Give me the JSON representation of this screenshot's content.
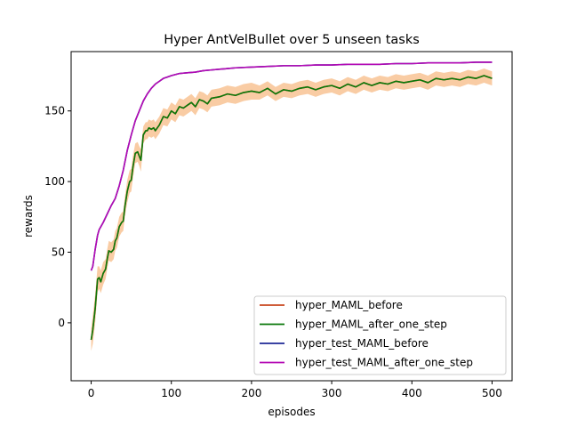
{
  "chart_data": {
    "type": "line",
    "title": "Hyper AntVelBullet over 5 unseen tasks",
    "xlabel": "episodes",
    "ylabel": "rewards",
    "xlim": [
      -25,
      525
    ],
    "ylim": [
      -41,
      192
    ],
    "xticks": [
      0,
      100,
      200,
      300,
      400,
      500
    ],
    "yticks": [
      0,
      50,
      100,
      150
    ],
    "grid": false,
    "legend_position": "lower-right",
    "colors": {
      "hyper_MAML_before": "#c8461e",
      "hyper_MAML_after_one_step": "#0a780a",
      "hyper_test_MAML_before": "#1e2896",
      "hyper_test_MAML_after_one_step": "#b40ab4",
      "band": "#f4a25a"
    },
    "series": [
      {
        "name": "hyper_MAML_before",
        "key": "a",
        "x": [
          0,
          2,
          5,
          8,
          10,
          12,
          15,
          18,
          20,
          22,
          25,
          28,
          30,
          32,
          35,
          38,
          40,
          42,
          45,
          48,
          50,
          52,
          55,
          58,
          60,
          62,
          65,
          68,
          70,
          72,
          75,
          78,
          80,
          85,
          90,
          95,
          100,
          105,
          110,
          115,
          120,
          125,
          130,
          135,
          140,
          145,
          150,
          160,
          170,
          180,
          190,
          200,
          210,
          220,
          230,
          240,
          250,
          260,
          270,
          280,
          290,
          300,
          310,
          320,
          330,
          340,
          350,
          360,
          370,
          380,
          390,
          400,
          410,
          420,
          430,
          440,
          450,
          460,
          470,
          480,
          490,
          500
        ],
        "values": [
          -12,
          -5,
          10,
          31,
          32,
          29,
          35,
          38,
          45,
          51,
          50,
          52,
          58,
          60,
          68,
          71,
          72,
          82,
          93,
          100,
          101,
          110,
          120,
          121,
          118,
          115,
          133,
          136,
          136,
          138,
          137,
          138,
          136,
          140,
          146,
          145,
          150,
          148,
          153,
          152,
          154,
          156,
          153,
          158,
          157,
          155,
          159,
          160,
          162,
          161,
          163,
          164,
          163,
          166,
          162,
          165,
          164,
          166,
          167,
          165,
          167,
          168,
          166,
          169,
          167,
          170,
          168,
          170,
          169,
          171,
          170,
          171,
          172,
          170,
          173,
          172,
          173,
          172,
          174,
          173,
          175,
          173
        ],
        "spread": [
          8,
          10,
          10,
          9,
          8,
          8,
          8,
          7,
          7,
          7,
          7,
          7,
          7,
          7,
          7,
          7,
          7,
          7,
          8,
          8,
          8,
          8,
          7,
          7,
          7,
          8,
          6,
          6,
          6,
          6,
          6,
          6,
          6,
          6,
          6,
          6,
          6,
          6,
          6,
          6,
          6,
          6,
          6,
          6,
          6,
          6,
          6,
          6,
          6,
          6,
          6,
          6,
          5,
          5,
          5,
          5,
          5,
          5,
          5,
          5,
          5,
          5,
          5,
          5,
          5,
          5,
          5,
          5,
          5,
          5,
          5,
          5,
          5,
          5,
          5,
          5,
          5,
          5,
          5,
          5,
          5,
          5
        ]
      },
      {
        "name": "hyper_MAML_after_one_step",
        "key": "b",
        "x": [
          0,
          2,
          5,
          8,
          10,
          12,
          15,
          18,
          20,
          22,
          25,
          28,
          30,
          32,
          35,
          38,
          40,
          42,
          45,
          48,
          50,
          52,
          55,
          58,
          60,
          62,
          65,
          68,
          70,
          72,
          75,
          78,
          80,
          85,
          90,
          95,
          100,
          105,
          110,
          115,
          120,
          125,
          130,
          135,
          140,
          145,
          150,
          160,
          170,
          180,
          190,
          200,
          210,
          220,
          230,
          240,
          250,
          260,
          270,
          280,
          290,
          300,
          310,
          320,
          330,
          340,
          350,
          360,
          370,
          380,
          390,
          400,
          410,
          420,
          430,
          440,
          450,
          460,
          470,
          480,
          490,
          500
        ],
        "values": [
          -12,
          -5,
          10,
          31,
          32,
          29,
          35,
          38,
          45,
          51,
          50,
          52,
          58,
          60,
          68,
          71,
          72,
          82,
          93,
          100,
          101,
          110,
          120,
          121,
          118,
          115,
          133,
          136,
          136,
          138,
          137,
          138,
          136,
          140,
          146,
          145,
          150,
          148,
          153,
          152,
          154,
          156,
          153,
          158,
          157,
          155,
          159,
          160,
          162,
          161,
          163,
          164,
          163,
          166,
          162,
          165,
          164,
          166,
          167,
          165,
          167,
          168,
          166,
          169,
          167,
          170,
          168,
          170,
          169,
          171,
          170,
          171,
          172,
          170,
          173,
          172,
          173,
          172,
          174,
          173,
          175,
          173
        ]
      },
      {
        "name": "hyper_test_MAML_before",
        "key": "c",
        "x": [
          0,
          2,
          5,
          8,
          10,
          15,
          20,
          25,
          30,
          35,
          40,
          45,
          50,
          55,
          60,
          65,
          70,
          75,
          80,
          85,
          90,
          95,
          100,
          110,
          120,
          130,
          140,
          150,
          160,
          170,
          180,
          200,
          220,
          240,
          260,
          280,
          300,
          320,
          340,
          360,
          380,
          400,
          420,
          440,
          460,
          480,
          500
        ],
        "values": [
          37,
          40,
          52,
          62,
          66,
          71,
          77,
          83,
          88,
          97,
          108,
          122,
          133,
          143,
          150,
          157,
          162,
          166,
          169,
          171,
          173,
          174,
          175,
          176.5,
          177,
          177.5,
          178.5,
          179,
          179.5,
          180,
          180.5,
          181,
          181.5,
          182,
          182,
          182.5,
          182.5,
          183,
          183,
          183,
          183.5,
          183.5,
          184,
          184,
          184,
          184.5,
          184.5
        ]
      },
      {
        "name": "hyper_test_MAML_after_one_step",
        "key": "d",
        "x": [
          0,
          2,
          5,
          8,
          10,
          15,
          20,
          25,
          30,
          35,
          40,
          45,
          50,
          55,
          60,
          65,
          70,
          75,
          80,
          85,
          90,
          95,
          100,
          110,
          120,
          130,
          140,
          150,
          160,
          170,
          180,
          200,
          220,
          240,
          260,
          280,
          300,
          320,
          340,
          360,
          380,
          400,
          420,
          440,
          460,
          480,
          500
        ],
        "values": [
          37,
          40,
          52,
          62,
          66,
          71,
          77,
          83,
          88,
          97,
          108,
          122,
          133,
          143,
          150,
          157,
          162,
          166,
          169,
          171,
          173,
          174,
          175,
          176.5,
          177,
          177.5,
          178.5,
          179,
          179.5,
          180,
          180.5,
          181,
          181.5,
          182,
          182,
          182.5,
          182.5,
          183,
          183,
          183,
          183.5,
          183.5,
          184,
          184,
          184,
          184.5,
          184.5
        ]
      }
    ]
  }
}
